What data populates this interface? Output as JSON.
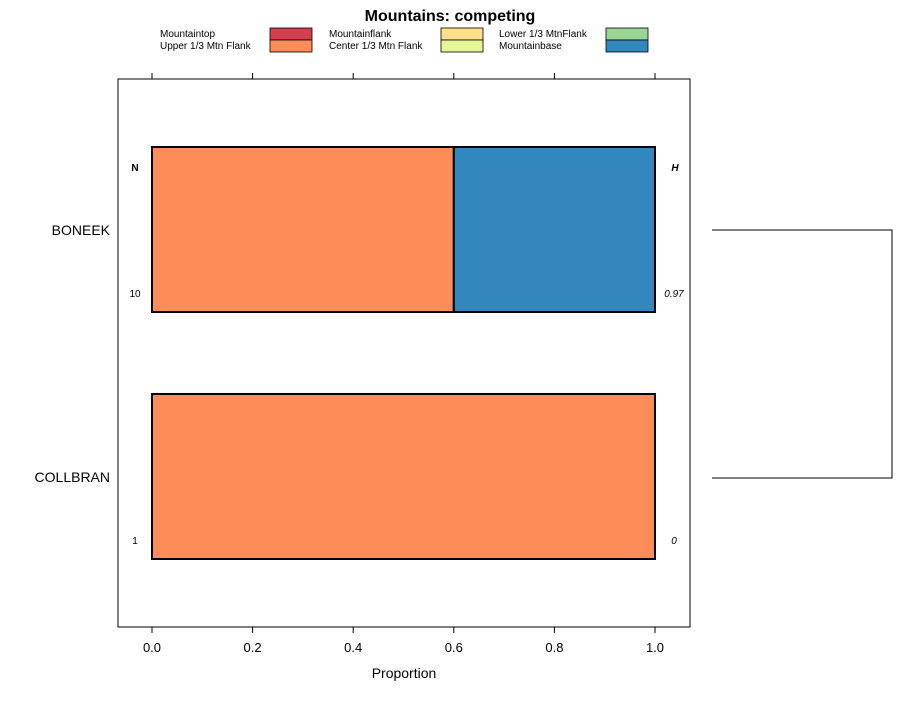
{
  "chart_data": {
    "type": "bar",
    "orientation": "horizontal",
    "stacked": true,
    "title": "Mountains: competing",
    "xlabel": "Proportion",
    "ylabel": "",
    "xlim": [
      0,
      1
    ],
    "x_ticks": [
      "0.0",
      "0.2",
      "0.4",
      "0.6",
      "0.8",
      "1.0"
    ],
    "x_tick_values": [
      0,
      0.2,
      0.4,
      0.6,
      0.8,
      1.0
    ],
    "categories": [
      "BONEEK",
      "COLLBRAN"
    ],
    "legend": [
      {
        "name": "Mountaintop",
        "color": "#D53E4F"
      },
      {
        "name": "Upper 1/3 Mtn Flank",
        "color": "#FC8D59"
      },
      {
        "name": "Mountainflank",
        "color": "#FEE08B"
      },
      {
        "name": "Center 1/3 Mtn Flank",
        "color": "#E6F598"
      },
      {
        "name": "Lower 1/3 MtnFlank",
        "color": "#99D594"
      },
      {
        "name": "Mountainbase",
        "color": "#3288BD"
      }
    ],
    "legend_position": "top",
    "series": [
      {
        "name": "Mountaintop",
        "values": [
          0,
          0
        ]
      },
      {
        "name": "Upper 1/3 Mtn Flank",
        "values": [
          0.6,
          1.0
        ]
      },
      {
        "name": "Mountainflank",
        "values": [
          0,
          0
        ]
      },
      {
        "name": "Center 1/3 Mtn Flank",
        "values": [
          0,
          0
        ]
      },
      {
        "name": "Lower 1/3 MtnFlank",
        "values": [
          0,
          0
        ]
      },
      {
        "name": "Mountainbase",
        "values": [
          0.4,
          0
        ]
      }
    ],
    "n_header": "N",
    "h_header": "H",
    "n_values": [
      "10",
      "1"
    ],
    "h_values": [
      "0.97",
      "0"
    ],
    "dendrogram": true
  }
}
